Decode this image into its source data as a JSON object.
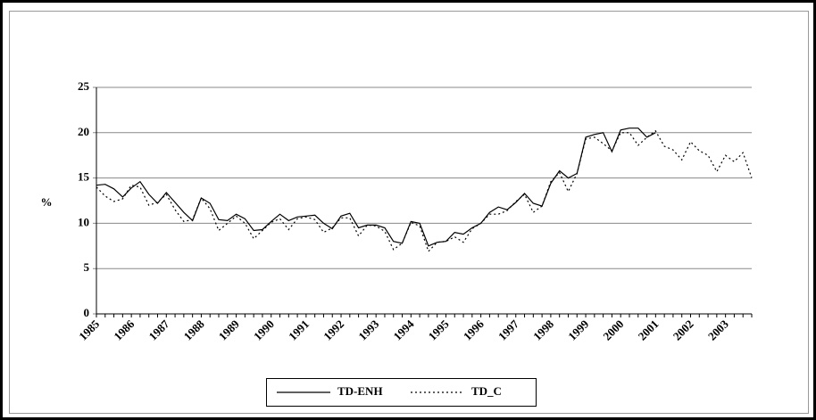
{
  "chart_data": {
    "type": "line",
    "y_label": "%",
    "categories": [
      "1985",
      null,
      null,
      null,
      "1986",
      null,
      null,
      null,
      "1987",
      null,
      null,
      null,
      "1988",
      null,
      null,
      null,
      "1989",
      null,
      null,
      null,
      "1990",
      null,
      null,
      null,
      "1991",
      null,
      null,
      null,
      "1992",
      null,
      null,
      null,
      "1993",
      null,
      null,
      null,
      "1994",
      null,
      null,
      null,
      "1995",
      null,
      null,
      null,
      "1996",
      null,
      null,
      null,
      "1997",
      null,
      null,
      null,
      "1998",
      null,
      null,
      null,
      "1999",
      null,
      null,
      null,
      "2000",
      null,
      null,
      null,
      "2001",
      null,
      null,
      null,
      "2002",
      null,
      null,
      null,
      "2003",
      null,
      null,
      null
    ],
    "series": [
      {
        "name": "TD-ENH",
        "color": "#000000",
        "dash": "none",
        "values": [
          14.2,
          14.3,
          13.8,
          12.9,
          13.9,
          14.6,
          13.2,
          12.2,
          13.4,
          12.3,
          11.2,
          10.3,
          12.8,
          12.2,
          10.4,
          10.3,
          11.0,
          10.5,
          9.2,
          9.3,
          10.2,
          11.0,
          10.3,
          10.7,
          10.8,
          10.9,
          10.0,
          9.4,
          10.8,
          11.1,
          9.5,
          9.8,
          9.8,
          9.5,
          8.0,
          7.8,
          10.2,
          10.0,
          7.5,
          7.9,
          8.0,
          9.0,
          8.8,
          9.5,
          10.0,
          11.2,
          11.8,
          11.5,
          12.3,
          13.3,
          12.2,
          11.9,
          14.4,
          15.8,
          15.0,
          15.5,
          19.5,
          19.8,
          20.0,
          17.9,
          20.3,
          20.5,
          20.5,
          19.5,
          20.0,
          null,
          null,
          null,
          null,
          null,
          null,
          null,
          null,
          null,
          null,
          null
        ]
      },
      {
        "name": "TD_C",
        "color": "#000000",
        "dash": "2 3",
        "values": [
          14.0,
          13.0,
          12.4,
          12.7,
          14.2,
          14.0,
          12.0,
          12.3,
          13.2,
          11.5,
          10.2,
          10.4,
          12.8,
          11.6,
          9.2,
          10.0,
          10.8,
          10.0,
          8.3,
          9.2,
          10.1,
          10.5,
          9.3,
          10.5,
          10.7,
          10.4,
          9.0,
          9.5,
          10.6,
          10.6,
          8.6,
          9.8,
          9.7,
          9.1,
          7.1,
          7.8,
          10.1,
          9.7,
          6.9,
          7.9,
          8.0,
          8.5,
          7.9,
          9.4,
          10.0,
          11.0,
          11.0,
          11.4,
          12.4,
          13.2,
          11.2,
          11.9,
          14.6,
          15.6,
          13.5,
          15.5,
          19.3,
          19.5,
          18.8,
          18.0,
          20.0,
          20.0,
          18.6,
          19.5,
          20.2,
          18.5,
          18.1,
          17.0,
          19.0,
          18.0,
          17.5,
          15.7,
          17.5,
          16.8,
          17.8,
          15.0
        ]
      }
    ],
    "ylim": [
      0,
      25
    ],
    "yticks": [
      0,
      5,
      10,
      15,
      20,
      25
    ],
    "grid": true,
    "legend": "bottom"
  }
}
